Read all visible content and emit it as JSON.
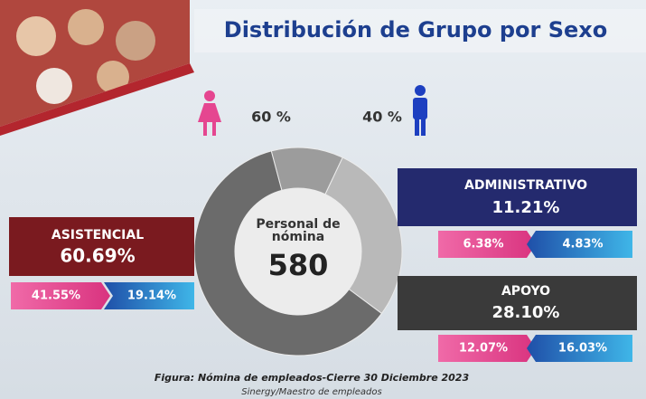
{
  "title": "Distribución de Grupo por Sexo",
  "gender": {
    "female": "60 %",
    "male": "40 %"
  },
  "center": {
    "label": "Personal de nómina",
    "total": 580
  },
  "groups": [
    {
      "name": "ASISTENCIAL",
      "value": 60.69,
      "value_label": "60.69%",
      "female": "41.55%",
      "male": "19.14%"
    },
    {
      "name": "ADMINISTRATIVO",
      "value": 11.21,
      "value_label": "11.21%",
      "female": "6.38%",
      "male": "4.83%"
    },
    {
      "name": "APOYO",
      "value": 28.1,
      "value_label": "28.10%",
      "female": "12.07%",
      "male": "16.03%"
    }
  ],
  "caption": "Figura: Nómina de empleados-Cierre 30 Diciembre 2023",
  "source": "Sinergy/Maestro de empleados"
}
